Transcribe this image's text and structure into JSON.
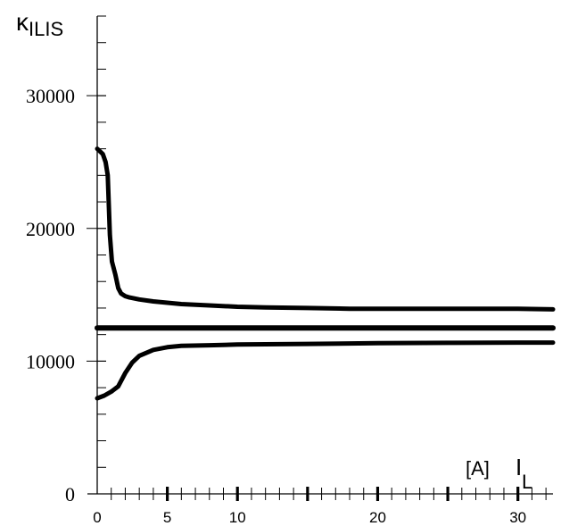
{
  "chart_data": {
    "type": "line",
    "title": "",
    "ylabel_main": "κ",
    "ylabel_sub": "ILIS",
    "xlabel_unit": "[A]",
    "xlabel_main": "I",
    "xlabel_sub": "L",
    "xlim": [
      0,
      32.5
    ],
    "ylim": [
      0,
      36000
    ],
    "grid": false,
    "y_ticks": [
      {
        "value": 0,
        "label": "0"
      },
      {
        "value": 10000,
        "label": "10000"
      },
      {
        "value": 20000,
        "label": "20000"
      },
      {
        "value": 30000,
        "label": "30000"
      }
    ],
    "x_ticks": [
      {
        "value": 0,
        "label": "0"
      },
      {
        "value": 5,
        "label": "5"
      },
      {
        "value": 10,
        "label": "10"
      },
      {
        "value": 20,
        "label": "20"
      },
      {
        "value": 30,
        "label": "30"
      }
    ],
    "x_major_marks": [
      5,
      10,
      15,
      20,
      25,
      30
    ],
    "series": [
      {
        "stroke": 5,
        "x": [
          0,
          0.4,
          0.6,
          0.75,
          0.9,
          1.05,
          1.3,
          1.5,
          1.7,
          2.0,
          2.3,
          3,
          4,
          5,
          6,
          8,
          10,
          12,
          15,
          18,
          20,
          25,
          30,
          32.5
        ],
        "y": [
          26000,
          25600,
          25000,
          24000,
          19500,
          17500,
          16500,
          15500,
          15100,
          14900,
          14800,
          14650,
          14500,
          14400,
          14300,
          14200,
          14100,
          14050,
          14000,
          13950,
          13950,
          13950,
          13950,
          13900
        ]
      },
      {
        "stroke": 6,
        "x": [
          0,
          32.5
        ],
        "y": [
          12500,
          12500
        ]
      },
      {
        "stroke": 5,
        "x": [
          0,
          0.5,
          1,
          1.5,
          2,
          2.5,
          3,
          4,
          5,
          6,
          8,
          10,
          15,
          20,
          25,
          30,
          32.5
        ],
        "y": [
          7200,
          7400,
          7700,
          8100,
          9100,
          9900,
          10400,
          10850,
          11050,
          11150,
          11200,
          11250,
          11300,
          11350,
          11380,
          11400,
          11400
        ]
      }
    ]
  }
}
